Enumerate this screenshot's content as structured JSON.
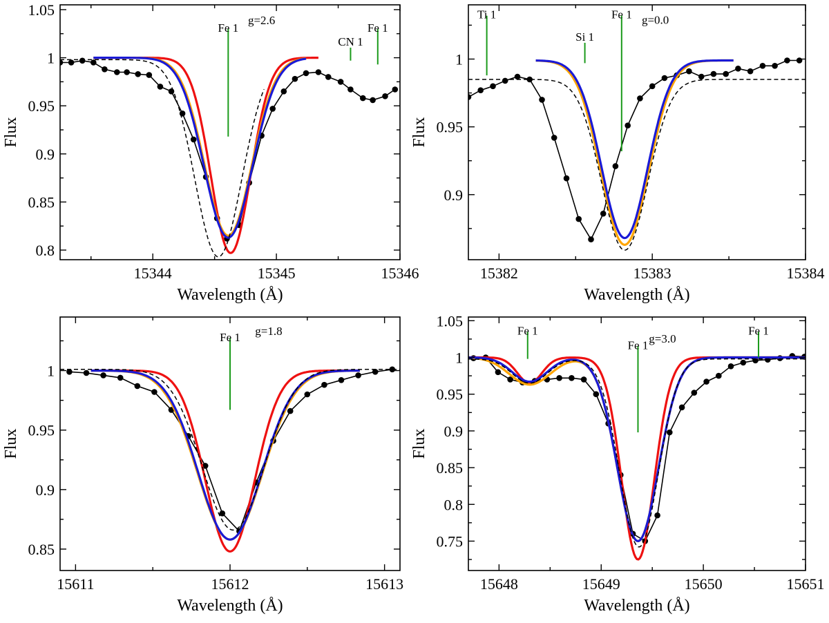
{
  "chart_data": [
    {
      "type": "line",
      "panel": "top-left",
      "xlabel": "Wavelength (Å)",
      "ylabel": "Flux",
      "xlim": [
        15343.25,
        15346.0
      ],
      "ylim": [
        0.79,
        1.055
      ],
      "xticks": [
        15344,
        15345,
        15346
      ],
      "yticks": [
        0.8,
        0.85,
        0.9,
        0.95,
        1,
        1.05
      ],
      "ytick_labels": [
        "0.8",
        "0.85",
        "0.9",
        "0.95",
        "1",
        "1.05"
      ],
      "line_center": 15344.62,
      "line_depth": 0.19,
      "series": [
        {
          "name": "observed",
          "color": "#000000",
          "style": "dots",
          "x": [
            15343.25,
            15343.34,
            15343.43,
            15343.52,
            15343.61,
            15343.71,
            15343.79,
            15343.88,
            15343.97,
            15344.06,
            15344.15,
            15344.24,
            15344.33,
            15344.43,
            15344.52,
            15344.6,
            15344.7,
            15344.78,
            15344.88,
            15344.97,
            15345.06,
            15345.15,
            15345.24,
            15345.34,
            15345.42,
            15345.52,
            15345.6,
            15345.7,
            15345.78,
            15345.88,
            15345.96
          ],
          "y": [
            0.995,
            0.995,
            0.997,
            0.995,
            0.988,
            0.985,
            0.985,
            0.983,
            0.982,
            0.97,
            0.965,
            0.942,
            0.915,
            0.876,
            0.833,
            0.812,
            0.826,
            0.87,
            0.919,
            0.947,
            0.965,
            0.978,
            0.984,
            0.985,
            0.98,
            0.975,
            0.967,
            0.958,
            0.956,
            0.96,
            0.967
          ]
        },
        {
          "name": "red",
          "color": "#ee1111",
          "kind": "gauss",
          "center": 15344.63,
          "depth": 0.203,
          "sigma": 0.16,
          "cont": 1.0,
          "x_range": [
            15343.52,
            15345.34
          ]
        },
        {
          "name": "orange",
          "color": "#ffa500",
          "kind": "gauss",
          "center": 15344.61,
          "depth": 0.185,
          "sigma": 0.19,
          "cont": 1.0,
          "x_range": [
            15343.52,
            15345.24
          ]
        },
        {
          "name": "blue",
          "color": "#1a1ad6",
          "kind": "gauss",
          "center": 15344.61,
          "depth": 0.187,
          "sigma": 0.195,
          "cont": 1.0,
          "x_range": [
            15343.52,
            15345.24
          ]
        },
        {
          "name": "dashed",
          "color": "#000000",
          "kind": "gauss",
          "style": "dashed",
          "center": 15344.53,
          "depth": 0.205,
          "sigma": 0.19,
          "cont": 0.998,
          "x_range": [
            15343.25,
            15344.9
          ]
        }
      ],
      "annotations": [
        {
          "label": "Fe 1",
          "x": 15344.61,
          "y_top": 1.03,
          "y_bottom": 0.918,
          "text_pos": "top"
        },
        {
          "label": "g=2.6",
          "x": 15344.88,
          "y": 1.035
        },
        {
          "label": "CN 1",
          "x": 15345.6,
          "y_top": 1.0105,
          "y_bottom": 0.997,
          "text_pos": "above"
        },
        {
          "label": "Fe 1",
          "x": 15345.82,
          "y_top": 1.03,
          "y_bottom": 0.993,
          "text_pos": "top"
        }
      ]
    },
    {
      "type": "line",
      "panel": "top-right",
      "xlabel": "Wavelength (Å)",
      "ylabel": "Flux",
      "xlim": [
        15381.8,
        15384.0
      ],
      "ylim": [
        0.852,
        1.04
      ],
      "xticks": [
        15382,
        15383,
        15384
      ],
      "yticks": [
        0.9,
        0.95,
        1
      ],
      "ytick_labels": [
        "0.9",
        "0.95",
        "1"
      ],
      "line_center": 15382.8,
      "line_depth": 0.13,
      "series": [
        {
          "name": "observed",
          "color": "#000000",
          "style": "dots",
          "x": [
            15381.8,
            15381.88,
            15381.96,
            15382.04,
            15382.12,
            15382.2,
            15382.28,
            15382.36,
            15382.44,
            15382.52,
            15382.6,
            15382.68,
            15382.76,
            15382.84,
            15382.92,
            15383.0,
            15383.08,
            15383.16,
            15383.24,
            15383.32,
            15383.4,
            15383.48,
            15383.56,
            15383.64,
            15383.72,
            15383.8,
            15383.88,
            15383.96
          ],
          "y": [
            0.972,
            0.977,
            0.98,
            0.984,
            0.987,
            0.985,
            0.97,
            0.942,
            0.912,
            0.882,
            0.867,
            0.886,
            0.921,
            0.951,
            0.971,
            0.98,
            0.986,
            0.988,
            0.991,
            0.987,
            0.989,
            0.989,
            0.993,
            0.991,
            0.995,
            0.995,
            0.999,
            0.999
          ]
        },
        {
          "name": "orange",
          "color": "#ffa500",
          "kind": "gauss",
          "center": 15382.82,
          "depth": 0.136,
          "sigma": 0.155,
          "cont": 0.999,
          "x_range": [
            15382.24,
            15383.53
          ]
        },
        {
          "name": "blue",
          "color": "#1a1ad6",
          "kind": "gauss",
          "center": 15382.82,
          "depth": 0.131,
          "sigma": 0.15,
          "cont": 0.999,
          "x_range": [
            15382.24,
            15383.53
          ]
        },
        {
          "name": "dashed",
          "color": "#000000",
          "kind": "gauss",
          "style": "dashed",
          "center": 15382.82,
          "depth": 0.126,
          "sigma": 0.15,
          "cont": 0.985,
          "x_range": [
            15381.8,
            15384.0
          ]
        }
      ],
      "annotations": [
        {
          "label": "Ti 1",
          "x": 15381.92,
          "y_top": 1.032,
          "y_bottom": 0.988,
          "text_pos": "top"
        },
        {
          "label": "Si 1",
          "x": 15382.56,
          "y_top": 1.012,
          "y_bottom": 0.997,
          "text_pos": "above"
        },
        {
          "label": "Fe 1",
          "x": 15382.8,
          "y_top": 1.032,
          "y_bottom": 0.932,
          "text_pos": "top"
        },
        {
          "label": "g=0.0",
          "x": 15383.02,
          "y": 1.026
        }
      ]
    },
    {
      "type": "line",
      "panel": "bottom-left",
      "xlabel": "Wavelength (Å)",
      "ylabel": "Flux",
      "xlim": [
        15610.9,
        15613.1
      ],
      "ylim": [
        0.832,
        1.045
      ],
      "xticks": [
        15611,
        15612,
        15613
      ],
      "yticks": [
        0.85,
        0.9,
        0.95,
        1
      ],
      "ytick_labels": [
        "0.85",
        "0.9",
        "0.95",
        "1"
      ],
      "line_center": 15612.0,
      "line_depth": 0.142,
      "series": [
        {
          "name": "observed",
          "color": "#000000",
          "style": "dots",
          "x": [
            15610.96,
            15611.07,
            15611.18,
            15611.29,
            15611.4,
            15611.51,
            15611.62,
            15611.73,
            15611.84,
            15611.95,
            15612.06,
            15612.17,
            15612.28,
            15612.39,
            15612.5,
            15612.61,
            15612.72,
            15612.83,
            15612.94,
            15613.05
          ],
          "y": [
            0.999,
            0.998,
            0.996,
            0.994,
            0.987,
            0.982,
            0.967,
            0.945,
            0.92,
            0.88,
            0.865,
            0.906,
            0.941,
            0.966,
            0.98,
            0.988,
            0.992,
            0.996,
            0.999,
            1.001
          ]
        },
        {
          "name": "red",
          "color": "#ee1111",
          "kind": "gauss",
          "center": 15612.0,
          "depth": 0.152,
          "sigma": 0.16,
          "cont": 1.0,
          "x_range": [
            15611.1,
            15612.84
          ]
        },
        {
          "name": "orange",
          "color": "#ffa500",
          "kind": "gauss",
          "center": 15612.0,
          "depth": 0.142,
          "sigma": 0.21,
          "cont": 1.0,
          "x_range": [
            15611.1,
            15612.84
          ]
        },
        {
          "name": "blue",
          "color": "#1a1ad6",
          "kind": "gauss",
          "center": 15612.0,
          "depth": 0.142,
          "sigma": 0.205,
          "cont": 1.0,
          "x_range": [
            15611.1,
            15612.84
          ]
        },
        {
          "name": "dashed",
          "color": "#000000",
          "kind": "gauss",
          "style": "dashed",
          "center": 15612.02,
          "depth": 0.135,
          "sigma": 0.2,
          "cont": 1.001,
          "x_range": [
            15610.9,
            15613.1
          ]
        }
      ],
      "annotations": [
        {
          "label": "Fe 1",
          "x": 15612.0,
          "y_top": 1.027,
          "y_bottom": 0.967,
          "text_pos": "top"
        },
        {
          "label": "g=1.8",
          "x": 15612.25,
          "y": 1.03
        }
      ]
    },
    {
      "type": "line",
      "panel": "bottom-right",
      "xlabel": "Wavelength (Å)",
      "ylabel": "Flux",
      "xlim": [
        15647.7,
        15651.0
      ],
      "ylim": [
        0.71,
        1.055
      ],
      "xticks": [
        15648,
        15649,
        15650,
        15651
      ],
      "yticks": [
        0.75,
        0.8,
        0.85,
        0.9,
        0.95,
        1,
        1.05
      ],
      "ytick_labels": [
        "0.75",
        "0.8",
        "0.85",
        "0.9",
        "0.95",
        "1",
        "1.05"
      ],
      "line_center": 15649.36,
      "line_depth": 0.25,
      "series": [
        {
          "name": "observed",
          "color": "#000000",
          "style": "dots",
          "x": [
            15647.75,
            15647.87,
            15647.99,
            15648.11,
            15648.23,
            15648.35,
            15648.47,
            15648.59,
            15648.71,
            15648.83,
            15648.95,
            15649.07,
            15649.19,
            15649.31,
            15649.43,
            15649.55,
            15649.67,
            15649.79,
            15649.91,
            15650.03,
            15650.15,
            15650.27,
            15650.39,
            15650.51,
            15650.63,
            15650.75,
            15650.87,
            15650.99
          ],
          "y": [
            0.999,
            1.0,
            0.98,
            0.97,
            0.966,
            0.968,
            0.97,
            0.972,
            0.972,
            0.97,
            0.95,
            0.91,
            0.84,
            0.76,
            0.75,
            0.785,
            0.898,
            0.932,
            0.952,
            0.967,
            0.975,
            0.988,
            0.993,
            0.996,
            0.997,
            0.999,
            1.002,
            1.001
          ]
        },
        {
          "name": "red",
          "color": "#ee1111",
          "kind": "gauss2",
          "center": 15649.36,
          "depth": 0.275,
          "sigma": 0.16,
          "c2": 15648.3,
          "d2": 0.035,
          "s2": 0.12,
          "cont": 1.0,
          "x_range": [
            15647.7,
            15651.0
          ]
        },
        {
          "name": "orange",
          "color": "#ffa500",
          "kind": "gauss2",
          "center": 15649.36,
          "depth": 0.25,
          "sigma": 0.2,
          "c2": 15648.3,
          "d2": 0.037,
          "s2": 0.2,
          "cont": 1.0,
          "x_range": [
            15647.7,
            15651.0
          ]
        },
        {
          "name": "blue",
          "color": "#1a1ad6",
          "kind": "gauss2",
          "center": 15649.36,
          "depth": 0.25,
          "sigma": 0.2,
          "c2": 15648.3,
          "d2": 0.033,
          "s2": 0.17,
          "cont": 1.0,
          "x_range": [
            15647.7,
            15651.0
          ]
        },
        {
          "name": "dashed",
          "color": "#000000",
          "kind": "gauss2",
          "style": "dashed",
          "center": 15649.37,
          "depth": 0.256,
          "sigma": 0.19,
          "c2": 15648.3,
          "d2": 0.033,
          "s2": 0.17,
          "cont": 0.998,
          "x_range": [
            15647.7,
            15651.0
          ]
        }
      ],
      "annotations": [
        {
          "label": "Fe 1",
          "x": 15648.28,
          "y_top": 1.035,
          "y_bottom": 0.998,
          "text_pos": "top"
        },
        {
          "label": "Fe 1",
          "x": 15649.36,
          "y_top": 1.015,
          "y_bottom": 0.898,
          "text_pos": "top"
        },
        {
          "label": "g=3.0",
          "x": 15649.6,
          "y": 1.02
        },
        {
          "label": "Fe 1",
          "x": 15650.54,
          "y_top": 1.035,
          "y_bottom": 1.0,
          "text_pos": "top"
        }
      ]
    }
  ]
}
